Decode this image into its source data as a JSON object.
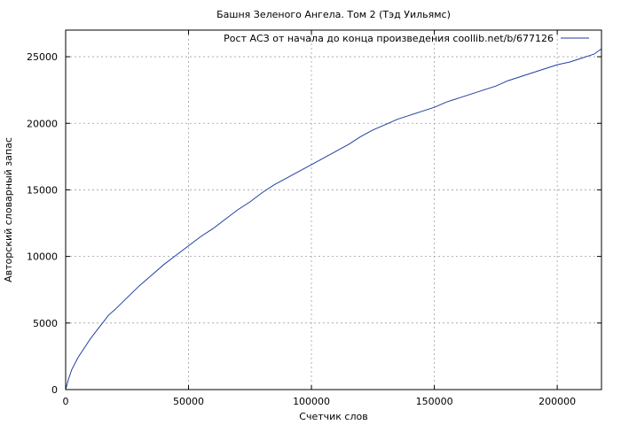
{
  "chart_data": {
    "type": "line",
    "title": "Башня Зеленого Ангела. Том 2 (Тэд Уильямс)",
    "xlabel": "Счетчик слов",
    "ylabel": "Авторский словарный запас",
    "xlim": [
      0,
      218000
    ],
    "ylim": [
      0,
      27000
    ],
    "xticks": [
      0,
      50000,
      100000,
      150000,
      200000
    ],
    "yticks": [
      0,
      5000,
      10000,
      15000,
      20000,
      25000
    ],
    "xtick_labels": [
      "0",
      "50000",
      "100000",
      "150000",
      "200000"
    ],
    "ytick_labels": [
      "0",
      "5000",
      "10000",
      "15000",
      "20000",
      "25000"
    ],
    "grid": true,
    "legend_position": "top-right",
    "series": [
      {
        "name": "Рост АСЗ от начала до конца произведения coollib.net/b/677126",
        "color": "#1f3f9f",
        "x": [
          0,
          1000,
          2500,
          5000,
          7500,
          10000,
          12500,
          15000,
          17500,
          20000,
          25000,
          30000,
          35000,
          40000,
          45000,
          50000,
          55000,
          60000,
          65000,
          70000,
          75000,
          80000,
          85000,
          90000,
          95000,
          100000,
          105000,
          110000,
          115000,
          120000,
          125000,
          130000,
          135000,
          140000,
          145000,
          150000,
          155000,
          160000,
          165000,
          170000,
          175000,
          180000,
          185000,
          190000,
          195000,
          200000,
          205000,
          210000,
          215000,
          218000
        ],
        "y": [
          0,
          700,
          1500,
          2400,
          3100,
          3800,
          4400,
          5000,
          5600,
          6000,
          6900,
          7800,
          8600,
          9400,
          10100,
          10800,
          11500,
          12100,
          12800,
          13500,
          14100,
          14800,
          15400,
          15900,
          16400,
          16900,
          17400,
          17900,
          18400,
          19000,
          19500,
          19900,
          20300,
          20600,
          20900,
          21200,
          21600,
          21900,
          22200,
          22500,
          22800,
          23200,
          23500,
          23800,
          24100,
          24400,
          24600,
          24900,
          25200,
          25600
        ]
      }
    ]
  }
}
